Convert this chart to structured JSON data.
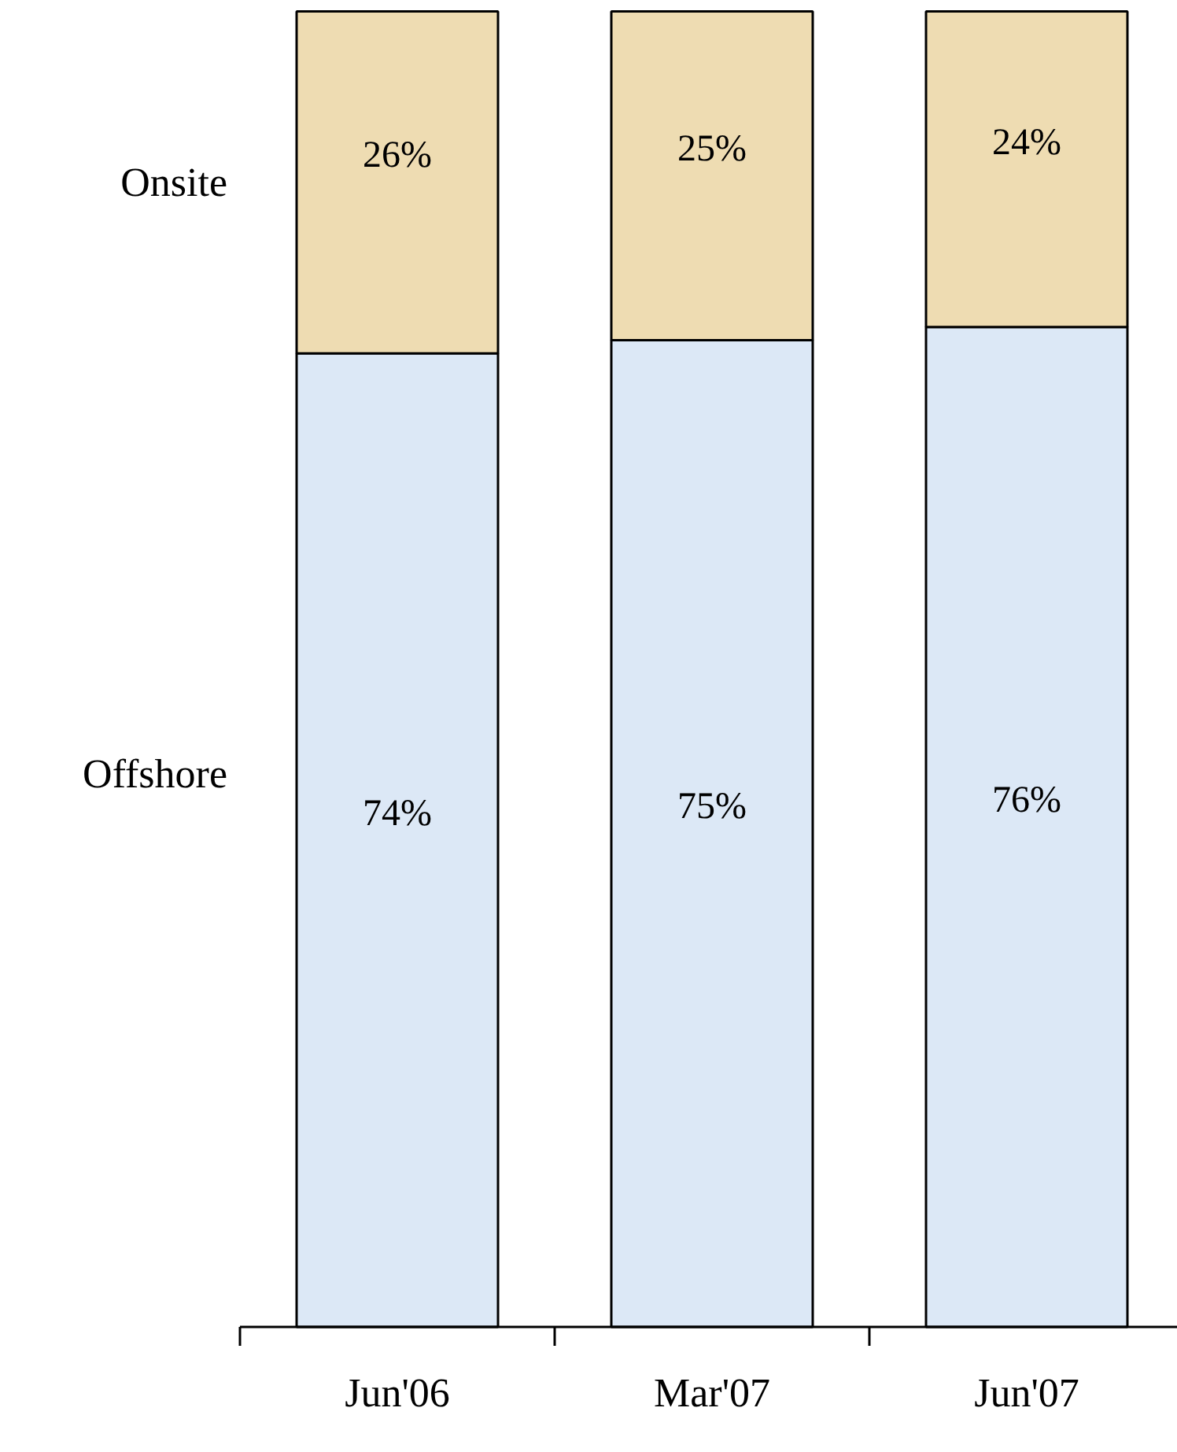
{
  "chart_data": {
    "type": "bar",
    "stacked": true,
    "legend": false,
    "categories": [
      "Jun'06",
      "Mar'07",
      "Jun'07"
    ],
    "series": [
      {
        "name": "Offshore",
        "color": "#dce8f6",
        "values": [
          74,
          75,
          76
        ],
        "value_labels": [
          "74%",
          "75%",
          "76%"
        ]
      },
      {
        "name": "Onsite",
        "color": "#eedcb2",
        "values": [
          26,
          25,
          24
        ],
        "value_labels": [
          "26%",
          "25%",
          "24%"
        ]
      }
    ]
  }
}
